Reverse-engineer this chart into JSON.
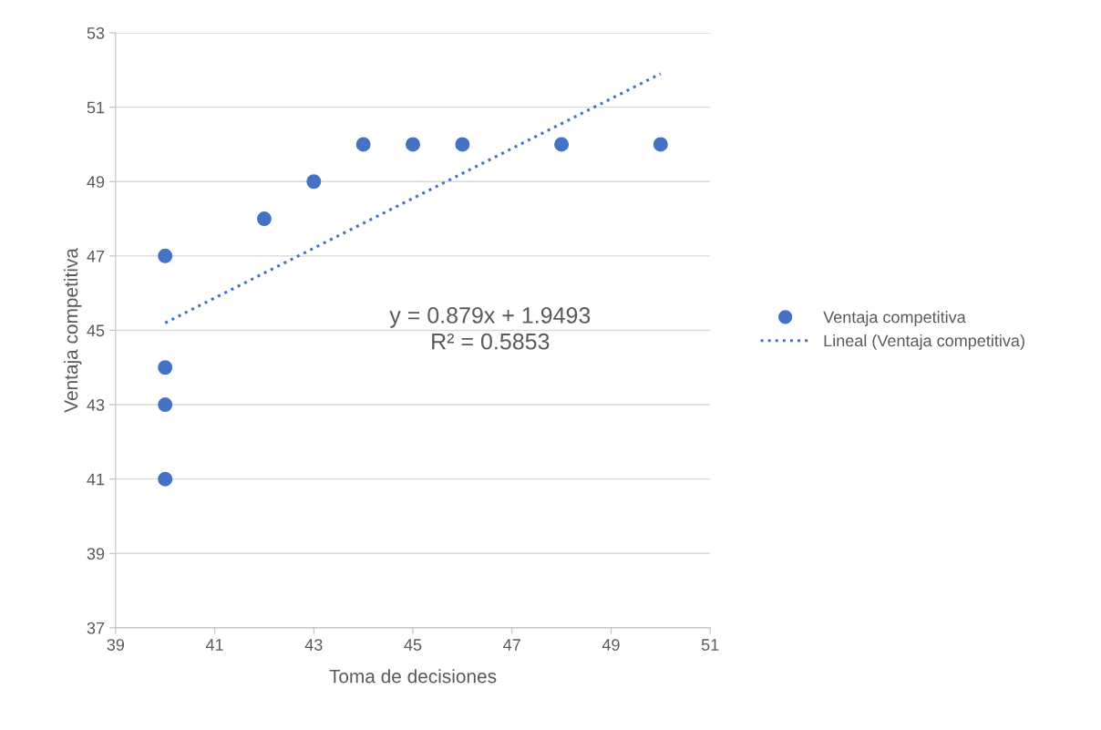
{
  "chart_data": {
    "type": "scatter",
    "xlabel": "Toma de decisiones",
    "ylabel": "Ventaja competitiva",
    "xlim": [
      39,
      51
    ],
    "xticks": [
      39,
      41,
      43,
      45,
      47,
      49,
      51
    ],
    "ylim": [
      37,
      53
    ],
    "yticks": [
      37,
      39,
      41,
      43,
      45,
      47,
      49,
      51,
      53
    ],
    "grid": "y",
    "legend": "right",
    "marker": "circle",
    "series": [
      {
        "name": "Ventaja competitiva",
        "color": "#4472c4",
        "x": [
          40,
          40,
          40,
          40,
          42,
          43,
          44,
          45,
          46,
          48,
          50
        ],
        "values": [
          47,
          44,
          43,
          41,
          48,
          49,
          50,
          50,
          50,
          50,
          50
        ]
      },
      {
        "name": "Lineal (Ventaja competitiva)",
        "type": "line",
        "line_style": "dotted",
        "marker": "none",
        "color": "#4472c4",
        "x": [
          40,
          50
        ],
        "values": [
          45.2,
          51.9
        ]
      }
    ],
    "annotations": [
      "y = 0.879x + 1.9493\nR² = 0.5853"
    ]
  }
}
